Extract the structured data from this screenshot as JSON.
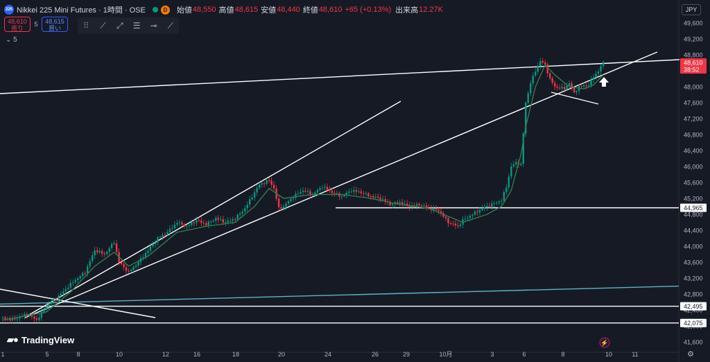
{
  "header": {
    "symbol_badge": "225",
    "title": "Nikkei 225 Mini Futures · 1時間 · OSE",
    "badge_d": "D",
    "open_label": "始値",
    "open": "48,550",
    "high_label": "高値",
    "high": "48,615",
    "low_label": "安値",
    "low": "48,440",
    "close_label": "終値",
    "close": "48,610",
    "change": "+65 (+0.13%)",
    "volume_label": "出来高",
    "volume": "12.27K"
  },
  "trade": {
    "sell_price": "48,610",
    "sell_label": "売り",
    "spread": "5",
    "buy_price": "48,615",
    "buy_label": "買い"
  },
  "indicator_label": "5",
  "currency": "JPY",
  "logo_text": "TradingView",
  "colors": {
    "background": "#161a25",
    "up": "#089981",
    "down": "#f23645",
    "ma": "#2f7d4f",
    "teal_line": "#5fb3c7",
    "trend": "#ffffff"
  },
  "chart_data": {
    "type": "line",
    "y_axis": {
      "ylim": [
        41200,
        49900
      ],
      "ticks": [
        41600,
        42000,
        42400,
        42800,
        43200,
        43600,
        44000,
        44400,
        44800,
        45200,
        45600,
        46000,
        46400,
        46800,
        47200,
        47600,
        48000,
        48400,
        48800,
        49200,
        49600
      ],
      "tick_labels": [
        "41,600",
        "42,000",
        "42,400",
        "42,800",
        "43,200",
        "43,600",
        "44,000",
        "44,400",
        "44,800",
        "45,200",
        "45,600",
        "46,000",
        "46,400",
        "46,800",
        "47,200",
        "47,600",
        "48,000",
        "48,400",
        "48,800",
        "49,200",
        "49,600"
      ],
      "price_labels": [
        {
          "label": "44,965",
          "value": 44965
        },
        {
          "label": "42,495",
          "value": 42495
        },
        {
          "label": "42,075",
          "value": 42075
        }
      ],
      "current": {
        "price": "48,610",
        "countdown": "38:52",
        "value": 48610
      }
    },
    "x_axis": {
      "tick_labels": [
        "1",
        "5",
        "8",
        "10",
        "12",
        "16",
        "18",
        "20",
        "24",
        "26",
        "29",
        "10月",
        "3",
        "6",
        "8",
        "10",
        "11"
      ]
    },
    "price_series": [
      {
        "t": 0,
        "v": 42200
      },
      {
        "t": 2,
        "v": 42150
      },
      {
        "t": 5,
        "v": 42300
      },
      {
        "t": 7,
        "v": 42150
      },
      {
        "t": 9,
        "v": 42500
      },
      {
        "t": 12,
        "v": 42800
      },
      {
        "t": 14,
        "v": 43050
      },
      {
        "t": 17,
        "v": 43350
      },
      {
        "t": 19,
        "v": 43900
      },
      {
        "t": 21,
        "v": 43800
      },
      {
        "t": 23,
        "v": 44100
      },
      {
        "t": 24,
        "v": 43600
      },
      {
        "t": 26,
        "v": 43350
      },
      {
        "t": 28,
        "v": 43600
      },
      {
        "t": 30,
        "v": 43900
      },
      {
        "t": 32,
        "v": 44200
      },
      {
        "t": 34,
        "v": 44350
      },
      {
        "t": 36,
        "v": 44600
      },
      {
        "t": 38,
        "v": 44500
      },
      {
        "t": 40,
        "v": 44650
      },
      {
        "t": 42,
        "v": 44550
      },
      {
        "t": 44,
        "v": 44700
      },
      {
        "t": 46,
        "v": 44600
      },
      {
        "t": 48,
        "v": 44700
      },
      {
        "t": 50,
        "v": 44950
      },
      {
        "t": 52,
        "v": 45350
      },
      {
        "t": 53,
        "v": 45550
      },
      {
        "t": 55,
        "v": 45650
      },
      {
        "t": 56,
        "v": 45450
      },
      {
        "t": 57,
        "v": 44950
      },
      {
        "t": 58,
        "v": 45000
      },
      {
        "t": 60,
        "v": 45250
      },
      {
        "t": 62,
        "v": 45400
      },
      {
        "t": 64,
        "v": 45300
      },
      {
        "t": 66,
        "v": 45500
      },
      {
        "t": 68,
        "v": 45350
      },
      {
        "t": 70,
        "v": 45250
      },
      {
        "t": 72,
        "v": 45400
      },
      {
        "t": 74,
        "v": 45350
      },
      {
        "t": 76,
        "v": 45250
      },
      {
        "t": 78,
        "v": 45200
      },
      {
        "t": 80,
        "v": 45050
      },
      {
        "t": 82,
        "v": 45100
      },
      {
        "t": 84,
        "v": 45000
      },
      {
        "t": 86,
        "v": 45050
      },
      {
        "t": 88,
        "v": 44950
      },
      {
        "t": 90,
        "v": 44900
      },
      {
        "t": 92,
        "v": 44600
      },
      {
        "t": 94,
        "v": 44500
      },
      {
        "t": 95,
        "v": 44650
      },
      {
        "t": 97,
        "v": 44800
      },
      {
        "t": 99,
        "v": 44950
      },
      {
        "t": 101,
        "v": 45050
      },
      {
        "t": 103,
        "v": 45150
      },
      {
        "t": 104,
        "v": 45500
      },
      {
        "t": 105,
        "v": 46000
      },
      {
        "t": 106,
        "v": 46100
      },
      {
        "t": 107,
        "v": 46050
      },
      {
        "t": 108,
        "v": 47600
      },
      {
        "t": 109,
        "v": 48100
      },
      {
        "t": 110,
        "v": 48400
      },
      {
        "t": 111,
        "v": 48650
      },
      {
        "t": 112,
        "v": 48550
      },
      {
        "t": 113,
        "v": 48200
      },
      {
        "t": 114,
        "v": 48000
      },
      {
        "t": 116,
        "v": 47950
      },
      {
        "t": 117,
        "v": 48100
      },
      {
        "t": 118,
        "v": 47850
      },
      {
        "t": 119,
        "v": 48000
      },
      {
        "t": 121,
        "v": 48050
      },
      {
        "t": 122,
        "v": 48250
      },
      {
        "t": 123,
        "v": 48400
      },
      {
        "t": 124,
        "v": 48610
      }
    ],
    "ma_series": [
      {
        "t": 0,
        "v": 42150
      },
      {
        "t": 9,
        "v": 42350
      },
      {
        "t": 14,
        "v": 42850
      },
      {
        "t": 19,
        "v": 43500
      },
      {
        "t": 23,
        "v": 43850
      },
      {
        "t": 26,
        "v": 43500
      },
      {
        "t": 30,
        "v": 43750
      },
      {
        "t": 36,
        "v": 44350
      },
      {
        "t": 42,
        "v": 44500
      },
      {
        "t": 48,
        "v": 44600
      },
      {
        "t": 52,
        "v": 45000
      },
      {
        "t": 55,
        "v": 45450
      },
      {
        "t": 58,
        "v": 45200
      },
      {
        "t": 64,
        "v": 45300
      },
      {
        "t": 70,
        "v": 45300
      },
      {
        "t": 76,
        "v": 45200
      },
      {
        "t": 82,
        "v": 45050
      },
      {
        "t": 88,
        "v": 44950
      },
      {
        "t": 92,
        "v": 44750
      },
      {
        "t": 95,
        "v": 44600
      },
      {
        "t": 100,
        "v": 44800
      },
      {
        "t": 103,
        "v": 45000
      },
      {
        "t": 105,
        "v": 45400
      },
      {
        "t": 107,
        "v": 46300
      },
      {
        "t": 108,
        "v": 47000
      },
      {
        "t": 110,
        "v": 48000
      },
      {
        "t": 112,
        "v": 48550
      },
      {
        "t": 114,
        "v": 48300
      },
      {
        "t": 117,
        "v": 48000
      },
      {
        "t": 120,
        "v": 47950
      },
      {
        "t": 122,
        "v": 48050
      },
      {
        "t": 124,
        "v": 48300
      }
    ]
  }
}
